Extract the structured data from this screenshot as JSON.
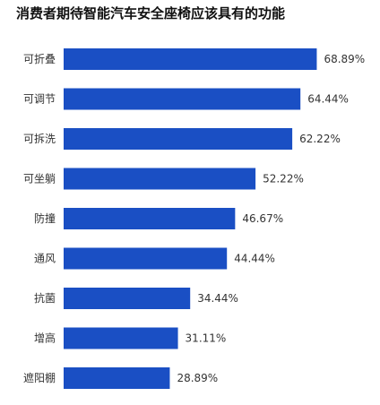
{
  "chart_data": {
    "type": "bar",
    "orientation": "horizontal",
    "title": "消费者期待智能汽车安全座椅应该具有的功能",
    "categories": [
      "可折叠",
      "可调节",
      "可拆洗",
      "可坐躺",
      "防撞",
      "通风",
      "抗菌",
      "增高",
      "遮阳棚"
    ],
    "values": [
      68.89,
      64.44,
      62.22,
      52.22,
      46.67,
      44.44,
      34.44,
      31.11,
      28.89
    ],
    "value_labels": [
      "68.89%",
      "64.44%",
      "62.22%",
      "52.22%",
      "46.67%",
      "44.44%",
      "34.44%",
      "31.11%",
      "28.89%"
    ],
    "unit": "%",
    "xlabel": "",
    "ylabel": "",
    "grid": false,
    "bar_color": "#1a4fc4"
  }
}
